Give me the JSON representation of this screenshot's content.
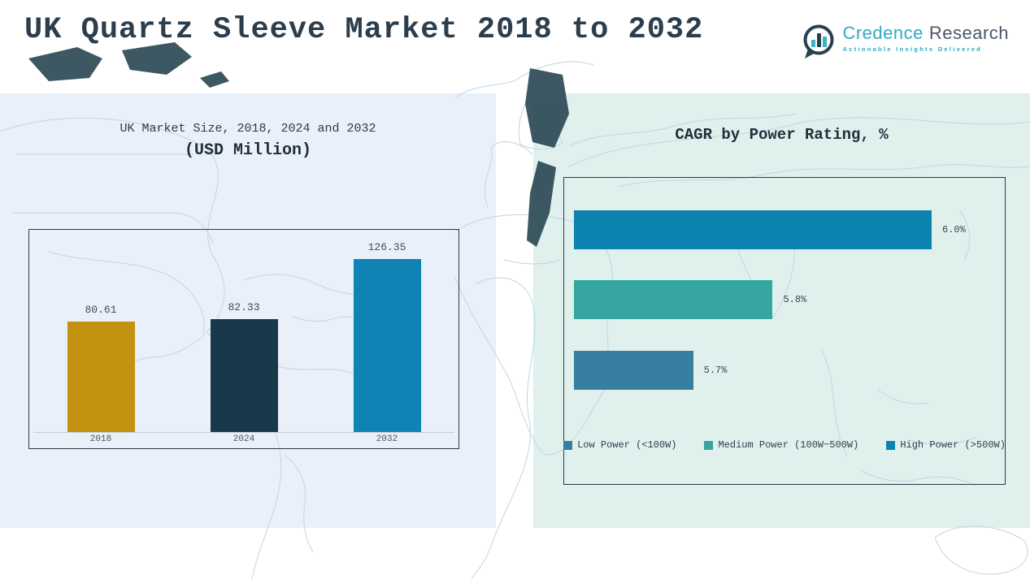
{
  "page": {
    "title": "UK Quartz Sleeve Market 2018 to 2032"
  },
  "brand": {
    "name_primary": "Credence",
    "name_secondary": "Research",
    "tagline": "Actionable Insights Delivered",
    "logo_icon": "bar-chart-speech-bubble-icon",
    "colors": {
      "teal": "#2fa9c4",
      "dark_text": "#495764",
      "icon_outline": "#27414f"
    }
  },
  "theme": {
    "title_color": "#2c3e4d",
    "left_panel_bg": "#e9f0f9",
    "right_panel_bg": "#e0f0ed",
    "map_line_color": "#bfd6e2",
    "map_land_color": "#2d4a55",
    "chart_border_color": "#2b3a45"
  },
  "chart_data": [
    {
      "type": "bar",
      "orientation": "vertical",
      "title": "UK Market Size, 2018, 2024 and 2032",
      "subtitle": "(USD Million)",
      "categories": [
        "2018",
        "2024",
        "2032"
      ],
      "values": [
        80.61,
        82.33,
        126.35
      ],
      "labels": [
        "80.61",
        "82.33",
        "126.35"
      ],
      "bar_colors": [
        "#c3920e",
        "#18394a",
        "#0f83b4"
      ],
      "xlabel": "",
      "ylabel": "",
      "ylim": [
        0,
        140
      ],
      "grid": false,
      "legend_position": "none"
    },
    {
      "type": "bar",
      "orientation": "horizontal",
      "title": "CAGR by Power Rating, %",
      "categories": [
        "High Power (>500W)",
        "Medium Power (100W~500W)",
        "Low Power (<100W)"
      ],
      "values": [
        6.0,
        5.8,
        5.7
      ],
      "labels": [
        "6.0%",
        "5.8%",
        "5.7%"
      ],
      "bar_colors": [
        "#0c82ae",
        "#35a6a0",
        "#377fa0"
      ],
      "xlabel": "",
      "ylabel": "",
      "xlim": [
        5.55,
        6.05
      ],
      "grid": false,
      "legend_position": "bottom",
      "legend": [
        {
          "label": "Low Power (<100W)",
          "color": "#377fa0"
        },
        {
          "label": "Medium Power (100W~500W)",
          "color": "#35a6a0"
        },
        {
          "label": "High Power (>500W)",
          "color": "#0c82ae"
        }
      ]
    }
  ]
}
